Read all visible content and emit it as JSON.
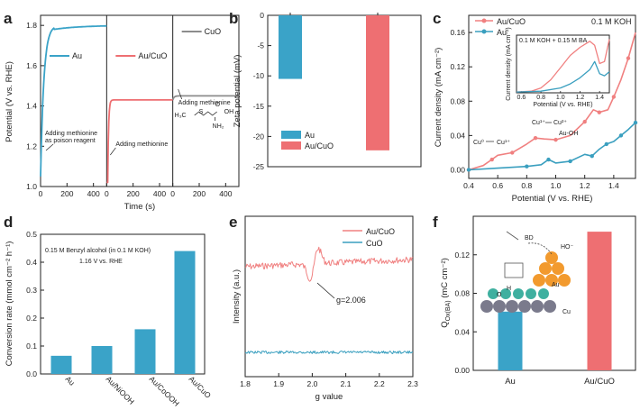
{
  "colors": {
    "blue": "#3aa3c8",
    "red": "#ee6f72",
    "gray": "#8c8c8c",
    "teal": "#3a9fbf",
    "pink": "#f08080"
  },
  "chart_data": [
    {
      "panel": "a",
      "type": "line",
      "ylabel": "Potential (V vs. RHE)",
      "xlabel": "Time (s)",
      "ylim": [
        1.0,
        1.85
      ],
      "yticks": [
        "1.0",
        "1.2",
        "1.4",
        "1.6",
        "1.8"
      ],
      "xticks": [
        "0",
        "200",
        "400"
      ],
      "series": [
        {
          "name": "Au",
          "start": 1.05,
          "plateau": 1.8,
          "annotation": "Adding methionine as poison reagent"
        },
        {
          "name": "Au/CuO",
          "start": 1.02,
          "plateau": 1.43,
          "annotation": "Adding methionine"
        },
        {
          "name": "CuO",
          "start": 1.43,
          "plateau": 1.45,
          "annotation": "Adding methionine"
        }
      ],
      "molecule": {
        "left": "H₃C",
        "s": "S",
        "oh": "OH",
        "o": "O",
        "nh2": "NH₂"
      }
    },
    {
      "panel": "b",
      "type": "bar",
      "ylabel": "Zeta potential (mV)",
      "ylim": [
        -25,
        0
      ],
      "yticks": [
        "0",
        "-5",
        "-10",
        "-15",
        "-20",
        "-25"
      ],
      "categories": [
        "Au",
        "Au/CuO"
      ],
      "values": [
        -10.5,
        -22.3
      ]
    },
    {
      "panel": "c",
      "type": "line",
      "title": "0.1  M KOH",
      "ylabel": "Current density (mA cm⁻²)",
      "xlabel": "Potential (V vs. RHE)",
      "xlim": [
        0.4,
        1.55
      ],
      "ylim": [
        -0.01,
        0.18
      ],
      "xticks": [
        "0.4",
        "0.6",
        "0.8",
        "1.0",
        "1.2",
        "1.4"
      ],
      "yticks": [
        "0.00",
        "0.04",
        "0.08",
        "0.12",
        "0.16"
      ],
      "series": [
        {
          "name": "Au/CuO",
          "x": [
            0.4,
            0.5,
            0.56,
            0.6,
            0.7,
            0.8,
            0.86,
            0.92,
            1.0,
            1.1,
            1.2,
            1.26,
            1.3,
            1.36,
            1.4,
            1.45,
            1.5,
            1.55
          ],
          "y": [
            0.0,
            0.005,
            0.012,
            0.017,
            0.02,
            0.03,
            0.037,
            0.036,
            0.035,
            0.04,
            0.056,
            0.07,
            0.067,
            0.07,
            0.085,
            0.105,
            0.13,
            0.16
          ]
        },
        {
          "name": "Au",
          "x": [
            0.4,
            0.6,
            0.8,
            0.9,
            0.95,
            1.0,
            1.1,
            1.2,
            1.25,
            1.3,
            1.35,
            1.4,
            1.45,
            1.5,
            1.55
          ],
          "y": [
            0.0,
            0.002,
            0.004,
            0.006,
            0.012,
            0.008,
            0.01,
            0.018,
            0.016,
            0.024,
            0.03,
            0.033,
            0.04,
            0.047,
            0.055
          ]
        }
      ],
      "annotations": [
        "Cu⁰",
        "Cu¹⁺",
        "Cu¹⁺",
        "Cu²⁺",
        "Au-OH"
      ],
      "inset": {
        "title": "0.1 M KOH + 0.15 M BA",
        "xlabel": "Potential (V vs. RHE)",
        "ylabel": "Current density (mA cm⁻²)",
        "xticks": [
          "0.6",
          "0.8",
          "1.0",
          "1.2",
          "1.4"
        ],
        "xlim": [
          0.55,
          1.5
        ],
        "ylim": [
          -0.002,
          0.14
        ],
        "series": [
          {
            "name": "Au/CuO",
            "x": [
              0.55,
              0.7,
              0.8,
              0.9,
              1.0,
              1.1,
              1.2,
              1.3,
              1.35,
              1.4,
              1.45,
              1.5
            ],
            "y": [
              0.0,
              0.002,
              0.01,
              0.03,
              0.06,
              0.09,
              0.11,
              0.125,
              0.115,
              0.07,
              0.075,
              0.13
            ]
          },
          {
            "name": "Au",
            "x": [
              0.55,
              0.8,
              1.0,
              1.1,
              1.2,
              1.3,
              1.35,
              1.4,
              1.45,
              1.5
            ],
            "y": [
              0.0,
              0.002,
              0.01,
              0.02,
              0.035,
              0.055,
              0.075,
              0.045,
              0.04,
              0.05
            ]
          }
        ]
      }
    },
    {
      "panel": "d",
      "type": "bar",
      "ylabel": "Conversion rate (mmol cm⁻² h⁻¹)",
      "ylim": [
        0,
        0.5
      ],
      "yticks": [
        "0.0",
        "0.1",
        "0.2",
        "0.3",
        "0.4",
        "0.5"
      ],
      "categories": [
        "Au",
        "Au/NiOOH",
        "Au/CoOOH",
        "Au/CuO"
      ],
      "values": [
        0.065,
        0.1,
        0.16,
        0.44
      ],
      "note_line1": "0.15 M Benzyl alcohol (in 0.1 M KOH)",
      "note_line2": "1.16 V vs. RHE"
    },
    {
      "panel": "e",
      "type": "line",
      "ylabel": "Intensity (a.u.)",
      "xlabel": "g value",
      "xlim": [
        1.8,
        2.3
      ],
      "xticks": [
        "1.8",
        "1.9",
        "2.0",
        "2.1",
        "2.2",
        "2.3"
      ],
      "series": [
        {
          "name": "Au/CuO"
        },
        {
          "name": "CuO"
        }
      ],
      "annotation": "g=2.006",
      "g_value": 2.006
    },
    {
      "panel": "f",
      "type": "bar",
      "ylabel": "Q",
      "ylabel_sub": "Ox(BA)",
      "ylabel_unit": " (mC cm⁻²)",
      "ylim": [
        0,
        0.16
      ],
      "yticks": [
        "0.00",
        "0.04",
        "0.08",
        "0.12"
      ],
      "categories": [
        "Au",
        "Au/CuO"
      ],
      "values": [
        0.061,
        0.144
      ],
      "scheme_labels": [
        "BD",
        "HO⁻",
        "Au",
        "O",
        "H",
        "Cu"
      ]
    }
  ]
}
